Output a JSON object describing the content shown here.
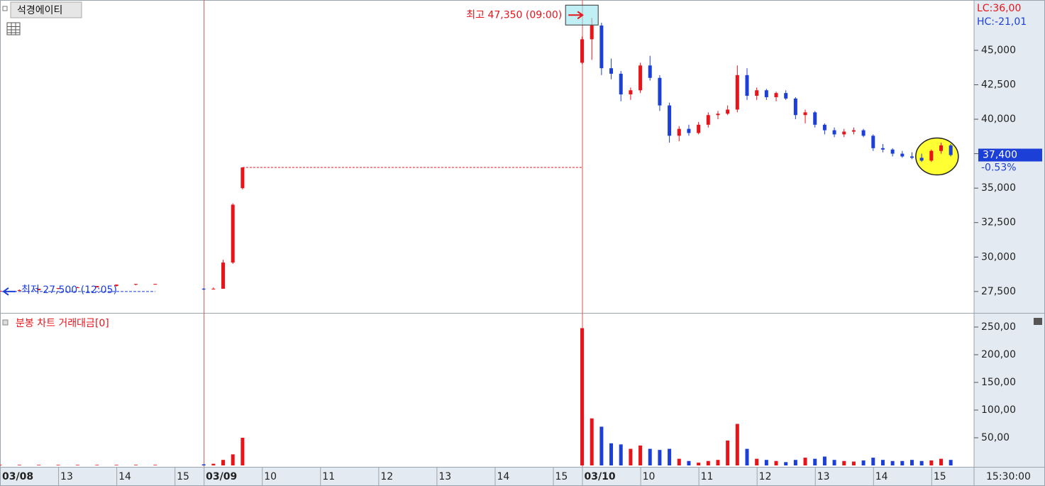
{
  "chart_data": [
    {
      "type": "candlestick",
      "title": "석경에이티",
      "x": [
        0,
        2,
        4,
        6,
        8,
        10,
        12,
        14,
        16,
        21,
        22,
        23,
        24,
        25,
        60,
        61,
        62,
        63,
        64,
        65,
        66,
        67,
        68,
        69,
        70,
        71,
        72,
        73,
        74,
        75,
        76,
        77,
        78,
        79,
        80,
        81,
        82,
        83,
        84,
        85,
        86,
        87,
        88,
        89,
        90,
        91,
        92,
        93,
        94,
        95,
        96,
        97,
        98
      ],
      "open": [
        27500,
        27550,
        27600,
        27700,
        27750,
        27800,
        27900,
        28000,
        28050,
        27700,
        27650,
        27700,
        29600,
        35000,
        44100,
        45800,
        46800,
        43700,
        43300,
        41800,
        42100,
        43900,
        43000,
        41000,
        38800,
        39300,
        39000,
        39600,
        40300,
        40400,
        40700,
        43200,
        41700,
        42100,
        41600,
        41900,
        41500,
        40300,
        40500,
        39600,
        39200,
        38900,
        39100,
        39200,
        38800,
        37900,
        37800,
        37500,
        37300,
        37200,
        37000,
        37700,
        38100
      ],
      "high": [
        27550,
        27650,
        27700,
        27750,
        27850,
        27900,
        28000,
        28050,
        28050,
        27750,
        27800,
        29800,
        33900,
        36500,
        46000,
        47350,
        47000,
        44400,
        43500,
        42300,
        44100,
        44600,
        43200,
        41200,
        39500,
        39600,
        39800,
        40500,
        40600,
        41000,
        43900,
        43700,
        42300,
        42200,
        42000,
        42100,
        41600,
        40700,
        40600,
        39700,
        39400,
        39300,
        39400,
        39300,
        38900,
        38200,
        37900,
        37700,
        37600,
        37500,
        37800,
        38300,
        38200
      ],
      "low": [
        27500,
        27550,
        27600,
        27650,
        27750,
        27800,
        27850,
        27950,
        28000,
        27600,
        27650,
        27700,
        29500,
        34900,
        44000,
        44300,
        43200,
        42900,
        41300,
        41400,
        41900,
        42800,
        40600,
        38300,
        38400,
        38800,
        38900,
        39400,
        40000,
        40300,
        40500,
        41400,
        41400,
        41400,
        41300,
        41400,
        40000,
        39700,
        39400,
        38900,
        38700,
        38700,
        38900,
        38700,
        37700,
        37600,
        37300,
        37200,
        37100,
        36900,
        36900,
        37500,
        37300
      ],
      "close": [
        27550,
        27600,
        27700,
        27750,
        27800,
        27900,
        28000,
        28050,
        28050,
        27650,
        27700,
        29600,
        33800,
        36500,
        45800,
        46800,
        43700,
        43300,
        41800,
        42100,
        43900,
        43000,
        41000,
        38800,
        39300,
        39000,
        39600,
        40300,
        40400,
        40700,
        43200,
        41700,
        42100,
        41600,
        41900,
        41500,
        40300,
        40500,
        39600,
        39200,
        38900,
        39100,
        39200,
        38800,
        37900,
        37800,
        37500,
        37300,
        37200,
        37000,
        37700,
        38100,
        37400
      ],
      "up_color": "#e8141a",
      "down_color": "#1c3fd8",
      "xlim": [
        0,
        100.4
      ],
      "xticks": [
        {
          "value": 0,
          "label": "03/08"
        },
        {
          "value": 6,
          "label": "13"
        },
        {
          "value": 12,
          "label": "14"
        },
        {
          "value": 18,
          "label": "15"
        },
        {
          "value": 21,
          "label": "03/09"
        },
        {
          "value": 27,
          "label": "10"
        },
        {
          "value": 33,
          "label": "11"
        },
        {
          "value": 39,
          "label": "12"
        },
        {
          "value": 45,
          "label": "13"
        },
        {
          "value": 51,
          "label": "14"
        },
        {
          "value": 57,
          "label": "15"
        },
        {
          "value": 60,
          "label": "03/10"
        },
        {
          "value": 66,
          "label": "10"
        },
        {
          "value": 72,
          "label": "11"
        },
        {
          "value": 78,
          "label": "12"
        },
        {
          "value": 84,
          "label": "13"
        },
        {
          "value": 90,
          "label": "14"
        },
        {
          "value": 96,
          "label": "15"
        }
      ],
      "x_end_label": "15:30:00",
      "ylim": [
        26000,
        48650
      ],
      "yticks": [
        {
          "value": 27500,
          "label": "27,500"
        },
        {
          "value": 30000,
          "label": "30,000"
        },
        {
          "value": 32500,
          "label": "32,500"
        },
        {
          "value": 35000,
          "label": "35,000"
        },
        {
          "value": 37500,
          "label": "37,500"
        },
        {
          "value": 40000,
          "label": "40,000"
        },
        {
          "value": 42500,
          "label": "42,500"
        },
        {
          "value": 45000,
          "label": "45,000"
        }
      ],
      "limit_line": {
        "value": 36500,
        "from": 25,
        "to": 60
      },
      "annotations": [
        {
          "text": "최고 47,350 (09:00)",
          "x": 61,
          "y": 47350,
          "color": "#e8141a"
        },
        {
          "text": "최저 27,500 (12:05)",
          "x": 0,
          "y": 27500,
          "color": "#1c3fd8"
        }
      ],
      "lc_label": "LC:36,00",
      "hc_label": "HC:-21,01",
      "last": {
        "value": 37400,
        "label": "37,400",
        "change": "-0.53%"
      }
    },
    {
      "type": "bar",
      "title": "분봉 차트 거래대금[0]",
      "values": [
        1,
        1,
        1,
        1,
        1,
        1,
        1,
        1,
        1,
        2,
        3,
        10,
        20,
        50,
        248,
        85,
        70,
        40,
        38,
        30,
        36,
        30,
        28,
        30,
        12,
        8,
        5,
        8,
        10,
        45,
        75,
        30,
        12,
        10,
        8,
        6,
        10,
        14,
        12,
        16,
        10,
        8,
        7,
        9,
        14,
        10,
        8,
        8,
        10,
        8,
        9,
        12,
        10
      ],
      "ylim": [
        0,
        273
      ],
      "yticks": [
        {
          "value": 50,
          "label": "50,00"
        },
        {
          "value": 100,
          "label": "100,00"
        },
        {
          "value": 150,
          "label": "150,00"
        },
        {
          "value": 200,
          "label": "200,00"
        },
        {
          "value": 250,
          "label": "250,00"
        }
      ]
    }
  ]
}
